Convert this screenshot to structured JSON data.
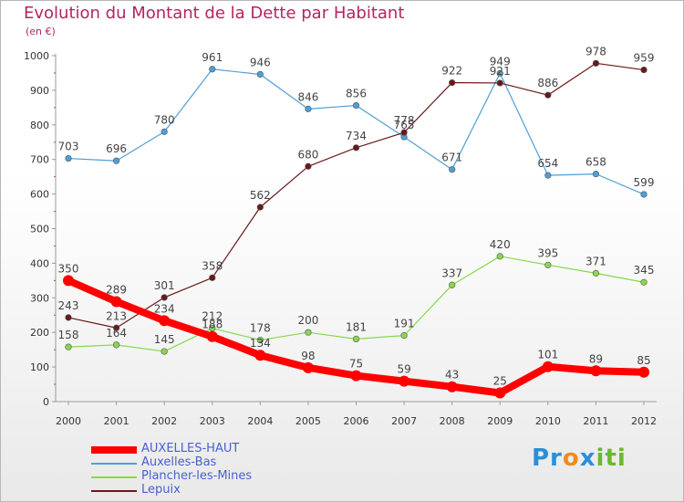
{
  "title": "Evolution du Montant de la Dette par Habitant",
  "subtitle": "(en €)",
  "logo": "Proxiti",
  "chart_data": {
    "type": "line",
    "title": "Evolution du Montant de la Dette par Habitant",
    "subtitle": "(en €)",
    "x": [
      "2000",
      "2001",
      "2002",
      "2003",
      "2004",
      "2005",
      "2006",
      "2007",
      "2008",
      "2009",
      "2010",
      "2011",
      "2012"
    ],
    "ylim": [
      0,
      1000
    ],
    "yticks": [
      0,
      100,
      200,
      300,
      400,
      500,
      600,
      700,
      800,
      900,
      1000
    ],
    "grid": false,
    "legend_position": "bottom-left",
    "series": [
      {
        "name": "AUXELLES-HAUT",
        "color": "#ff0000",
        "values": [
          350,
          289,
          234,
          188,
          134,
          98,
          75,
          59,
          43,
          25,
          101,
          89,
          85
        ]
      },
      {
        "name": "Auxelles-Bas",
        "color": "#4f9fd6",
        "values": [
          703,
          696,
          780,
          961,
          946,
          846,
          856,
          765,
          671,
          949,
          654,
          658,
          599
        ]
      },
      {
        "name": "Plancher-les-Mines",
        "color": "#86d84c",
        "values": [
          158,
          164,
          145,
          212,
          178,
          200,
          181,
          191,
          337,
          420,
          395,
          371,
          345
        ]
      },
      {
        "name": "Lepuix",
        "color": "#6b1818",
        "values": [
          243,
          213,
          301,
          358,
          562,
          680,
          734,
          778,
          922,
          921,
          886,
          978,
          959
        ]
      }
    ]
  }
}
